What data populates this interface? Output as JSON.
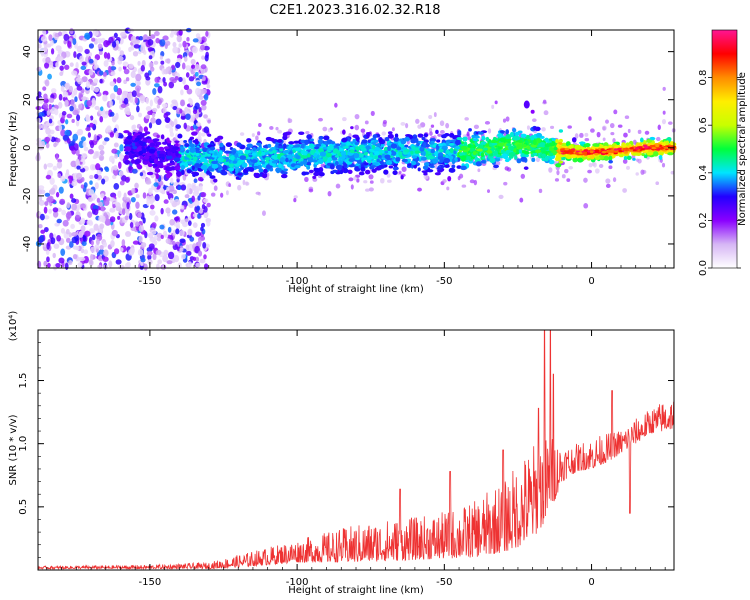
{
  "title": "C2E1.2023.316.02.32.R18",
  "chart_data": [
    {
      "type": "heatmap",
      "xlabel": "Height of straight line (km)",
      "ylabel": "Frequency (Hz)",
      "xlim": [
        -188,
        28
      ],
      "ylim": [
        -50,
        49
      ],
      "x_ticks": [
        -150,
        -100,
        -50,
        0
      ],
      "y_ticks": [
        -40,
        -20,
        0,
        20,
        40
      ],
      "colorbar": {
        "label": "Normalized spectral amplitude",
        "range": [
          0,
          1
        ],
        "ticks": [
          "0.0",
          "0.2",
          "0.4",
          "0.6",
          "0.8"
        ],
        "colors": [
          "#ffffff",
          "#d6b6f5",
          "#8a00ff",
          "#2200ff",
          "#00e5ff",
          "#00ff3c",
          "#c8ff00",
          "#ffee00",
          "#ff8c00",
          "#ff0000",
          "#ff1493"
        ]
      },
      "band_center_hz": [
        [
          -150,
          -3
        ],
        [
          -120,
          -5
        ],
        [
          -100,
          -3
        ],
        [
          -75,
          -2
        ],
        [
          -50,
          -2
        ],
        [
          -25,
          1
        ],
        [
          -15,
          0
        ],
        [
          -5,
          -2
        ],
        [
          0,
          -2
        ],
        [
          10,
          -1
        ],
        [
          20,
          0
        ],
        [
          28,
          0
        ]
      ],
      "noise_region_km": [
        -188,
        -130
      ],
      "spike": {
        "x_km": -22,
        "y_hz": 18
      }
    },
    {
      "type": "line",
      "xlabel": "Height of straight line (km)",
      "ylabel": "SNR (10 * v/v)",
      "scale_label": "(x10⁴)",
      "xlim": [
        -188,
        28
      ],
      "ylim": [
        0,
        1.9
      ],
      "x_ticks": [
        -150,
        -100,
        -50,
        0
      ],
      "y_ticks": [
        "0.5",
        "1.0",
        "1.5"
      ],
      "series": [
        {
          "color": "#ee3333",
          "envelope": [
            [
              -188,
              0.01,
              0.03
            ],
            [
              -150,
              0.01,
              0.04
            ],
            [
              -130,
              0.01,
              0.06
            ],
            [
              -120,
              0.02,
              0.12
            ],
            [
              -110,
              0.04,
              0.18
            ],
            [
              -100,
              0.06,
              0.24
            ],
            [
              -90,
              0.06,
              0.3
            ],
            [
              -80,
              0.06,
              0.36
            ],
            [
              -70,
              0.07,
              0.4
            ],
            [
              -60,
              0.08,
              0.42
            ],
            [
              -50,
              0.09,
              0.46
            ],
            [
              -40,
              0.1,
              0.54
            ],
            [
              -30,
              0.14,
              0.72
            ],
            [
              -25,
              0.18,
              0.85
            ],
            [
              -20,
              0.25,
              1.0
            ],
            [
              -15,
              0.4,
              1.1
            ],
            [
              -10,
              0.7,
              1.0
            ],
            [
              -5,
              0.78,
              1.0
            ],
            [
              0,
              0.8,
              1.05
            ],
            [
              5,
              0.85,
              1.08
            ],
            [
              10,
              0.92,
              1.12
            ],
            [
              15,
              1.0,
              1.2
            ],
            [
              20,
              1.08,
              1.28
            ],
            [
              25,
              1.1,
              1.35
            ],
            [
              28,
              1.12,
              1.38
            ]
          ],
          "spikes": [
            [
              -16,
              1.9
            ],
            [
              -14,
              1.9
            ],
            [
              -18,
              1.28
            ],
            [
              -13,
              1.55
            ],
            [
              7,
              1.42
            ],
            [
              13,
              0.45
            ],
            [
              -48,
              0.78
            ],
            [
              -65,
              0.64
            ],
            [
              -30,
              0.95
            ]
          ]
        }
      ]
    }
  ]
}
